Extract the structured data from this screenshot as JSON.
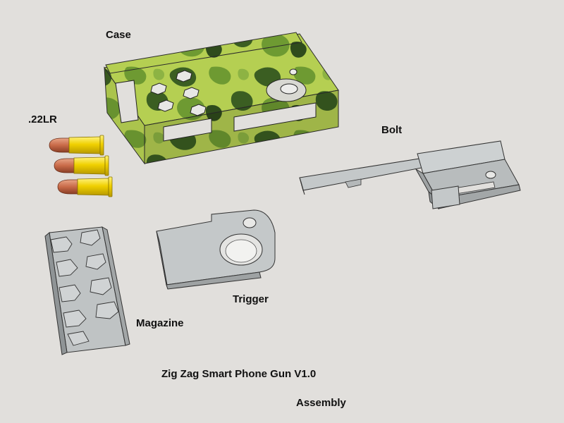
{
  "labels": {
    "case": "Case",
    "ammo": ".22LR",
    "bolt": "Bolt",
    "trigger": "Trigger",
    "magazine": "Magazine",
    "title": "Zig Zag Smart Phone Gun V1.0",
    "subtitle": "Assembly"
  },
  "colors": {
    "background": "#e1dfdc",
    "camo_base": "#b5cf52",
    "camo_dark": "#3b5e22",
    "camo_mid": "#6e9a32",
    "part_gray": "#bfc3c4",
    "part_gray_dark": "#8f9496",
    "brass": "#f0d000",
    "copper": "#c86a48"
  },
  "parts": [
    "case",
    "cartridge",
    "cartridge",
    "cartridge",
    "bolt",
    "magazine",
    "trigger"
  ]
}
